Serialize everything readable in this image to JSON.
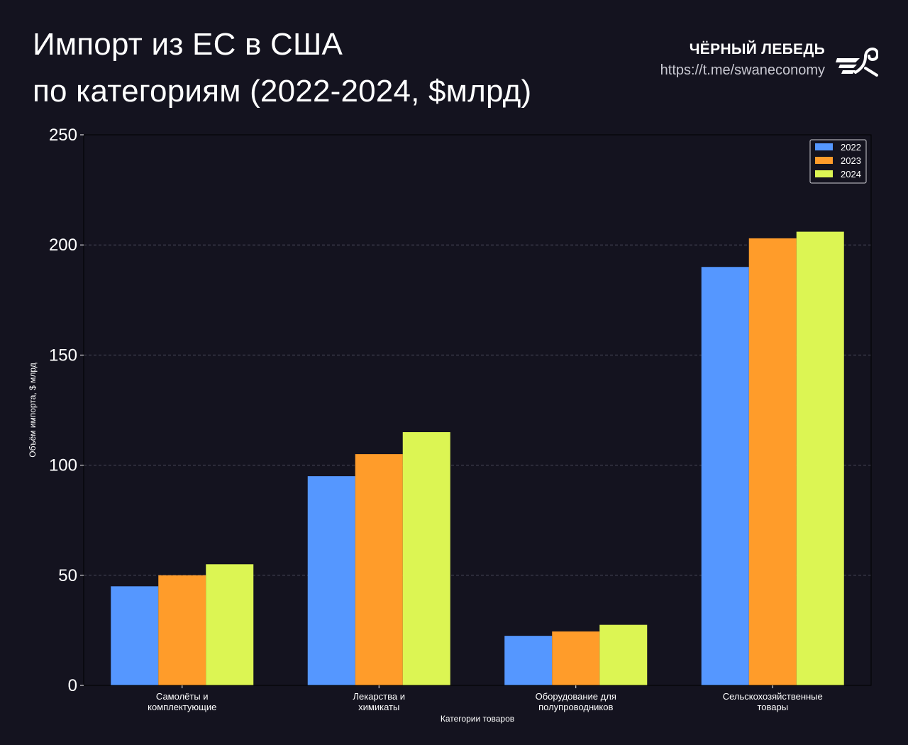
{
  "header": {
    "title_line1": "Импорт из ЕС в США",
    "title_line2": "по категориям (2022-2024, $млрд)",
    "brand_name": "ЧЁРНЫЙ ЛЕБЕДЬ",
    "brand_url": "https://t.me/swaneconomy",
    "logo_icon": "swan-logo-icon"
  },
  "colors": {
    "background": "#14131f",
    "grid": "#4a4a5a",
    "s2022": "#5597ff",
    "s2023": "#ff9c2a",
    "s2024": "#dcf553"
  },
  "chart_data": {
    "type": "bar",
    "title": "",
    "xlabel": "Категории товаров",
    "ylabel": "Объём импорта, $ млрд",
    "ylim": [
      0,
      250
    ],
    "yticks": [
      0,
      50,
      100,
      150,
      200,
      250
    ],
    "grid": true,
    "legend_position": "top-right",
    "categories": [
      [
        "Самолёты и",
        "комплектующие"
      ],
      [
        "Лекарства и",
        "химикаты"
      ],
      [
        "Оборудование для",
        "полупроводников"
      ],
      [
        "Сельскохозяйственные",
        "товары"
      ]
    ],
    "series": [
      {
        "name": "2022",
        "color": "#5597ff",
        "values": [
          45,
          95,
          22.5,
          190
        ]
      },
      {
        "name": "2023",
        "color": "#ff9c2a",
        "values": [
          50,
          105,
          24.5,
          203
        ]
      },
      {
        "name": "2024",
        "color": "#dcf553",
        "values": [
          55,
          115,
          27.5,
          206
        ]
      }
    ]
  }
}
